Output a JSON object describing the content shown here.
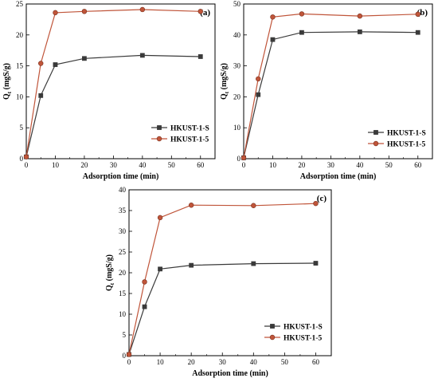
{
  "colors": {
    "series_s": "#3a3a3a",
    "series_5": "#c0553a",
    "axis": "#000000"
  },
  "chart_data": [
    {
      "type": "line",
      "panel_label": "(a)",
      "xlabel": "Adsorption time (min)",
      "ylabel_main": "Q",
      "ylabel_sub": "t",
      "ylabel_unit": " (mgS/g)",
      "xlim": [
        0,
        65
      ],
      "ylim": [
        0,
        25
      ],
      "xticks": [
        0,
        10,
        20,
        30,
        40,
        50,
        60
      ],
      "yticks": [
        0,
        5,
        10,
        15,
        20,
        25
      ],
      "legend_position": "bottom-right",
      "series": [
        {
          "name": "HKUST-1-S",
          "marker": "square",
          "x": [
            0,
            5,
            10,
            20,
            40,
            60
          ],
          "y": [
            0.3,
            10.2,
            15.2,
            16.2,
            16.7,
            16.5
          ]
        },
        {
          "name": "HKUST-1-5",
          "marker": "circle",
          "x": [
            0,
            5,
            10,
            20,
            40,
            60
          ],
          "y": [
            0.3,
            15.4,
            23.6,
            23.8,
            24.1,
            23.8
          ]
        }
      ]
    },
    {
      "type": "line",
      "panel_label": "(b)",
      "xlabel": "Adsorption time (min)",
      "ylabel_main": "Q",
      "ylabel_sub": "t",
      "ylabel_unit": " (mgS/g)",
      "xlim": [
        0,
        65
      ],
      "ylim": [
        0,
        50
      ],
      "xticks": [
        0,
        10,
        20,
        30,
        40,
        50,
        60
      ],
      "yticks": [
        0,
        10,
        20,
        30,
        40,
        50
      ],
      "legend_position": "bottom-right",
      "series": [
        {
          "name": "HKUST-1-S",
          "marker": "square",
          "x": [
            0,
            5,
            10,
            20,
            40,
            60
          ],
          "y": [
            0.3,
            20.7,
            38.5,
            40.8,
            41.0,
            40.8
          ]
        },
        {
          "name": "HKUST-1-5",
          "marker": "circle",
          "x": [
            0,
            5,
            10,
            20,
            40,
            60
          ],
          "y": [
            0.3,
            25.8,
            45.8,
            46.8,
            46.1,
            46.7
          ]
        }
      ]
    },
    {
      "type": "line",
      "panel_label": "(c)",
      "xlabel": "Adsorption time (min)",
      "ylabel_main": "Q",
      "ylabel_sub": "t",
      "ylabel_unit": " (mgS/g)",
      "xlim": [
        0,
        65
      ],
      "ylim": [
        0,
        40
      ],
      "xticks": [
        0,
        10,
        20,
        30,
        40,
        50,
        60
      ],
      "yticks": [
        0,
        5,
        10,
        15,
        20,
        25,
        30,
        35,
        40
      ],
      "legend_position": "bottom-right",
      "series": [
        {
          "name": "HKUST-1-S",
          "marker": "square",
          "x": [
            0,
            5,
            10,
            20,
            40,
            60
          ],
          "y": [
            0.3,
            11.8,
            20.9,
            21.8,
            22.2,
            22.3
          ]
        },
        {
          "name": "HKUST-1-5",
          "marker": "circle",
          "x": [
            0,
            5,
            10,
            20,
            40,
            60
          ],
          "y": [
            0.3,
            17.8,
            33.3,
            36.3,
            36.2,
            36.7
          ]
        }
      ]
    }
  ]
}
